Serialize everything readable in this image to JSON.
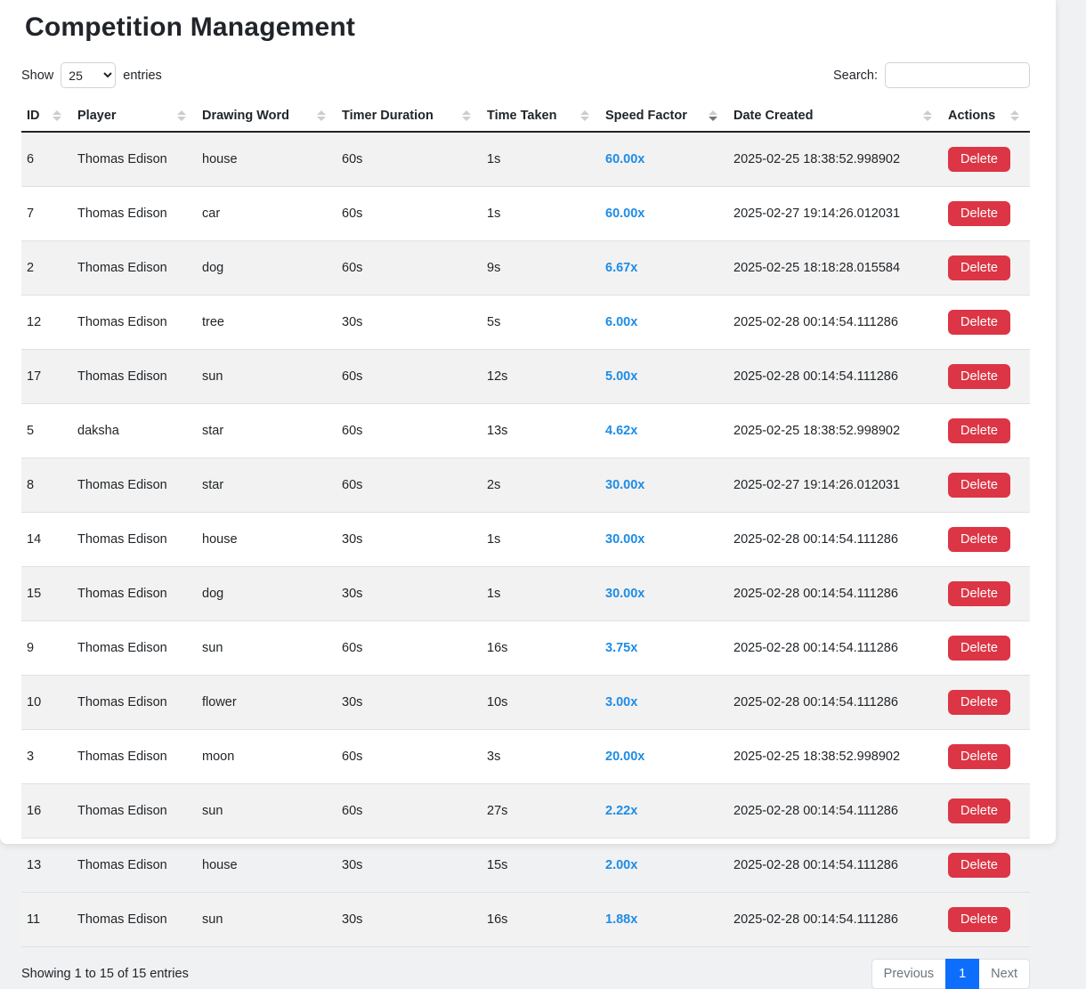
{
  "page": {
    "title": "Competition Management"
  },
  "controls": {
    "show_label": "Show",
    "page_length": "25",
    "entries_label": "entries",
    "search_label": "Search:",
    "search_value": ""
  },
  "table": {
    "columns": [
      {
        "label": "ID",
        "sort": "none"
      },
      {
        "label": "Player",
        "sort": "none"
      },
      {
        "label": "Drawing Word",
        "sort": "none"
      },
      {
        "label": "Timer Duration",
        "sort": "none"
      },
      {
        "label": "Time Taken",
        "sort": "none"
      },
      {
        "label": "Speed Factor",
        "sort": "desc"
      },
      {
        "label": "Date Created",
        "sort": "none"
      },
      {
        "label": "Actions",
        "sort": "none"
      }
    ],
    "delete_label": "Delete",
    "rows": [
      {
        "id": "6",
        "player": "Thomas Edison",
        "word": "house",
        "timer": "60s",
        "taken": "1s",
        "speed": "60.00x",
        "created": "2025-02-25 18:38:52.998902"
      },
      {
        "id": "7",
        "player": "Thomas Edison",
        "word": "car",
        "timer": "60s",
        "taken": "1s",
        "speed": "60.00x",
        "created": "2025-02-27 19:14:26.012031"
      },
      {
        "id": "2",
        "player": "Thomas Edison",
        "word": "dog",
        "timer": "60s",
        "taken": "9s",
        "speed": "6.67x",
        "created": "2025-02-25 18:18:28.015584"
      },
      {
        "id": "12",
        "player": "Thomas Edison",
        "word": "tree",
        "timer": "30s",
        "taken": "5s",
        "speed": "6.00x",
        "created": "2025-02-28 00:14:54.111286"
      },
      {
        "id": "17",
        "player": "Thomas Edison",
        "word": "sun",
        "timer": "60s",
        "taken": "12s",
        "speed": "5.00x",
        "created": "2025-02-28 00:14:54.111286"
      },
      {
        "id": "5",
        "player": "daksha",
        "word": "star",
        "timer": "60s",
        "taken": "13s",
        "speed": "4.62x",
        "created": "2025-02-25 18:38:52.998902"
      },
      {
        "id": "8",
        "player": "Thomas Edison",
        "word": "star",
        "timer": "60s",
        "taken": "2s",
        "speed": "30.00x",
        "created": "2025-02-27 19:14:26.012031"
      },
      {
        "id": "14",
        "player": "Thomas Edison",
        "word": "house",
        "timer": "30s",
        "taken": "1s",
        "speed": "30.00x",
        "created": "2025-02-28 00:14:54.111286"
      },
      {
        "id": "15",
        "player": "Thomas Edison",
        "word": "dog",
        "timer": "30s",
        "taken": "1s",
        "speed": "30.00x",
        "created": "2025-02-28 00:14:54.111286"
      },
      {
        "id": "9",
        "player": "Thomas Edison",
        "word": "sun",
        "timer": "60s",
        "taken": "16s",
        "speed": "3.75x",
        "created": "2025-02-28 00:14:54.111286"
      },
      {
        "id": "10",
        "player": "Thomas Edison",
        "word": "flower",
        "timer": "30s",
        "taken": "10s",
        "speed": "3.00x",
        "created": "2025-02-28 00:14:54.111286"
      },
      {
        "id": "3",
        "player": "Thomas Edison",
        "word": "moon",
        "timer": "60s",
        "taken": "3s",
        "speed": "20.00x",
        "created": "2025-02-25 18:38:52.998902"
      },
      {
        "id": "16",
        "player": "Thomas Edison",
        "word": "sun",
        "timer": "60s",
        "taken": "27s",
        "speed": "2.22x",
        "created": "2025-02-28 00:14:54.111286"
      },
      {
        "id": "13",
        "player": "Thomas Edison",
        "word": "house",
        "timer": "30s",
        "taken": "15s",
        "speed": "2.00x",
        "created": "2025-02-28 00:14:54.111286"
      },
      {
        "id": "11",
        "player": "Thomas Edison",
        "word": "sun",
        "timer": "30s",
        "taken": "16s",
        "speed": "1.88x",
        "created": "2025-02-28 00:14:54.111286"
      }
    ]
  },
  "footer": {
    "info": "Showing 1 to 15 of 15 entries",
    "pagination": {
      "previous": "Previous",
      "current": "1",
      "next": "Next"
    }
  },
  "colors": {
    "accent_blue": "#0d6efd",
    "speed_blue": "#1e8ce6",
    "danger_red": "#dc3545"
  }
}
